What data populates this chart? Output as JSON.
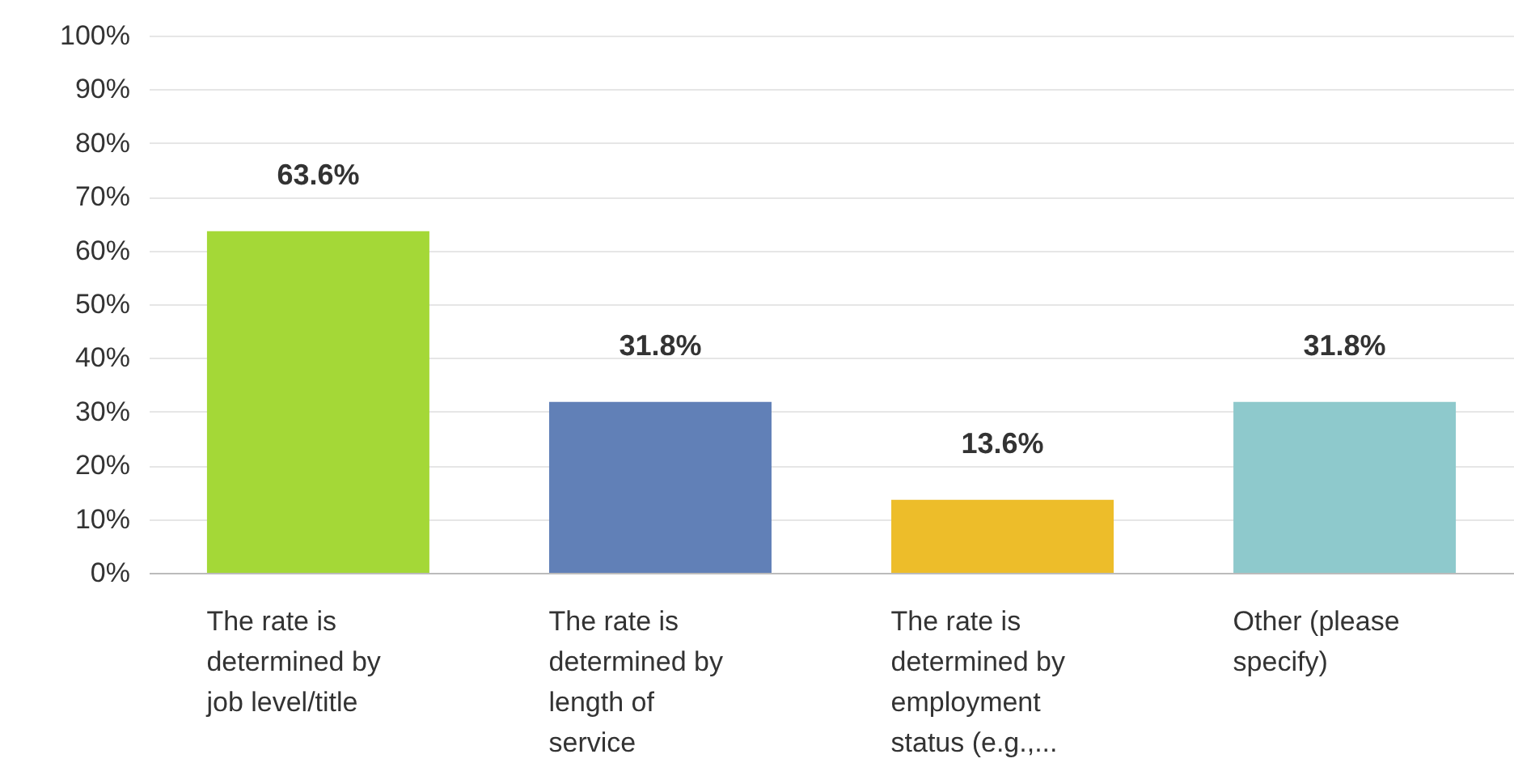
{
  "chart_data": {
    "type": "bar",
    "categories": [
      "The rate is determined by job level/title",
      "The rate is determined by length of service",
      "The rate is determined by employment status (e.g.,...",
      "Other (please specify)"
    ],
    "values": [
      63.6,
      31.8,
      13.6,
      31.8
    ],
    "colors": [
      "#a4d837",
      "#6180b7",
      "#edbd2a",
      "#8ec9cc"
    ],
    "value_labels": [
      "63.6%",
      "31.8%",
      "13.6%",
      "31.8%"
    ],
    "ylim": [
      0,
      100
    ],
    "yticks": [
      {
        "value": 0,
        "label": "0%"
      },
      {
        "value": 10,
        "label": "10%"
      },
      {
        "value": 20,
        "label": "20%"
      },
      {
        "value": 30,
        "label": "30%"
      },
      {
        "value": 40,
        "label": "40%"
      },
      {
        "value": 50,
        "label": "50%"
      },
      {
        "value": 60,
        "label": "60%"
      },
      {
        "value": 70,
        "label": "70%"
      },
      {
        "value": 80,
        "label": "80%"
      },
      {
        "value": 90,
        "label": "90%"
      },
      {
        "value": 100,
        "label": "100%"
      }
    ],
    "grid": "y"
  }
}
